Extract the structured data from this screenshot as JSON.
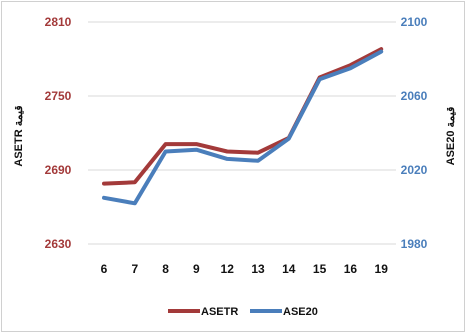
{
  "chart_data": {
    "type": "line",
    "categories": [
      "6",
      "7",
      "8",
      "9",
      "12",
      "13",
      "14",
      "15",
      "16",
      "19"
    ],
    "y_left": {
      "label": "ASETR قيمة",
      "ticks": [
        "2810",
        "2750",
        "2690",
        "2630"
      ],
      "range": [
        2630,
        2810
      ],
      "color": "#A33A3A"
    },
    "y_right": {
      "label": "ASE20 قيمة",
      "ticks": [
        "2100",
        "2060",
        "2020",
        "1980"
      ],
      "range": [
        1980,
        2100
      ],
      "color": "#4A7EBB"
    },
    "series": [
      {
        "name": "ASETR",
        "axis": "left",
        "color": "#A33A3A",
        "values": [
          2679,
          2680,
          2711,
          2711,
          2705,
          2704,
          2716,
          2765,
          2775,
          2788
        ]
      },
      {
        "name": "ASE20",
        "axis": "right",
        "color": "#4A7EBB",
        "values": [
          2005,
          2002,
          2030,
          2031,
          2026,
          2025,
          2037,
          2069,
          2075,
          2084
        ]
      }
    ],
    "grid": true,
    "legend_position": "bottom"
  }
}
